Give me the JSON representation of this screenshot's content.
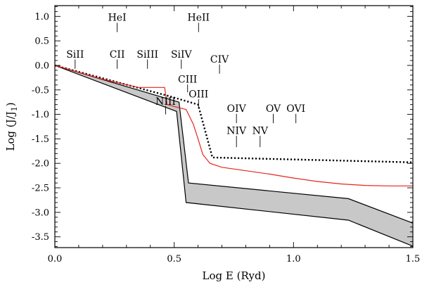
{
  "chart_data": {
    "type": "line",
    "xlabel": "Log E (Ryd)",
    "ylabel": "Log (J/J",
    "ylabel_sub": "1",
    "ylabel_close": ")",
    "xlim": [
      0.0,
      1.5
    ],
    "ylim": [
      -3.72,
      1.22
    ],
    "grid": false,
    "legend": "none",
    "x_ticks": [
      {
        "value": 0.0,
        "label": "0.0"
      },
      {
        "value": 0.5,
        "label": "0.5"
      },
      {
        "value": 1.0,
        "label": "1.0"
      },
      {
        "value": 1.5,
        "label": "1.5"
      }
    ],
    "x_minor_step": 0.1,
    "y_ticks": [
      {
        "value": 1.0,
        "label": "1.0"
      },
      {
        "value": 0.5,
        "label": "0.5"
      },
      {
        "value": 0.0,
        "label": "0.0"
      },
      {
        "value": -0.5,
        "label": "-0.5"
      },
      {
        "value": -1.0,
        "label": "-1.0"
      },
      {
        "value": -1.5,
        "label": "-1.5"
      },
      {
        "value": -2.0,
        "label": "-2.0"
      },
      {
        "value": -2.5,
        "label": "-2.5"
      },
      {
        "value": -3.0,
        "label": "-3.0"
      },
      {
        "value": -3.5,
        "label": "-3.5"
      }
    ],
    "y_minor_step": 0.1,
    "band": {
      "upper": [
        [
          0.0,
          0.0
        ],
        [
          0.52,
          -0.75
        ],
        [
          0.56,
          -2.4
        ],
        [
          1.23,
          -2.72
        ],
        [
          1.5,
          -3.22
        ]
      ],
      "lower": [
        [
          0.0,
          0.0
        ],
        [
          0.51,
          -0.94
        ],
        [
          0.55,
          -2.8
        ],
        [
          1.23,
          -3.16
        ],
        [
          1.5,
          -3.69
        ]
      ],
      "fill": "#c8c8c8",
      "stroke": "#000000"
    },
    "series": [
      {
        "style": "dotted",
        "color": "#000000",
        "points": [
          [
            0.0,
            0.0
          ],
          [
            0.48,
            -0.63
          ],
          [
            0.6,
            -0.8
          ],
          [
            0.66,
            -1.88
          ],
          [
            1.5,
            -1.98
          ]
        ]
      },
      {
        "style": "solid",
        "color": "#e8241c",
        "points": [
          [
            0.0,
            0.0
          ],
          [
            0.2,
            -0.28
          ],
          [
            0.35,
            -0.45
          ],
          [
            0.46,
            -0.45
          ],
          [
            0.47,
            -0.8
          ],
          [
            0.5,
            -0.84
          ],
          [
            0.55,
            -0.9
          ],
          [
            0.58,
            -1.2
          ],
          [
            0.6,
            -1.5
          ],
          [
            0.62,
            -1.82
          ],
          [
            0.65,
            -2.0
          ],
          [
            0.7,
            -2.08
          ],
          [
            0.8,
            -2.15
          ],
          [
            0.9,
            -2.22
          ],
          [
            1.0,
            -2.3
          ],
          [
            1.1,
            -2.37
          ],
          [
            1.2,
            -2.42
          ],
          [
            1.3,
            -2.45
          ],
          [
            1.4,
            -2.46
          ],
          [
            1.5,
            -2.46
          ]
        ]
      }
    ],
    "annotations": [
      {
        "label": "SiII",
        "x": 0.085,
        "y": 0.23,
        "line_top": 0.12,
        "line_bottom": -0.07
      },
      {
        "label": "HeI",
        "x": 0.261,
        "y": 0.98,
        "line_top": 0.87,
        "line_bottom": 0.68
      },
      {
        "label": "CII",
        "x": 0.261,
        "y": 0.23,
        "line_top": 0.12,
        "line_bottom": -0.07
      },
      {
        "label": "SiIII",
        "x": 0.388,
        "y": 0.23,
        "line_top": 0.12,
        "line_bottom": -0.07
      },
      {
        "label": "SiIV",
        "x": 0.53,
        "y": 0.23,
        "line_top": 0.12,
        "line_bottom": -0.07
      },
      {
        "label": "HeII",
        "x": 0.602,
        "y": 0.98,
        "line_top": 0.87,
        "line_bottom": 0.68
      },
      {
        "label": "CIV",
        "x": 0.69,
        "y": 0.13,
        "line_top": 0.02,
        "line_bottom": -0.17
      },
      {
        "label": "CIII",
        "x": 0.556,
        "y": -0.28,
        "line_top": -0.39,
        "line_bottom": -0.55
      },
      {
        "label": "NIII",
        "x": 0.464,
        "y": -0.73,
        "line_top": -0.83,
        "line_bottom": -1.0
      },
      {
        "label": "OIII",
        "x": 0.602,
        "y": -0.58,
        "line_top": -0.69,
        "line_bottom": -0.88
      },
      {
        "label": "OIV",
        "x": 0.761,
        "y": -0.88,
        "line_top": -0.99,
        "line_bottom": -1.18
      },
      {
        "label": "OV",
        "x": 0.915,
        "y": -0.88,
        "line_top": -0.99,
        "line_bottom": -1.18
      },
      {
        "label": "OVI",
        "x": 1.01,
        "y": -0.88,
        "line_top": -0.99,
        "line_bottom": -1.18
      },
      {
        "label": "NIV",
        "x": 0.761,
        "y": -1.33,
        "line_top": -1.44,
        "line_bottom": -1.67
      },
      {
        "label": "NV",
        "x": 0.86,
        "y": -1.33,
        "line_top": -1.44,
        "line_bottom": -1.67
      }
    ]
  }
}
